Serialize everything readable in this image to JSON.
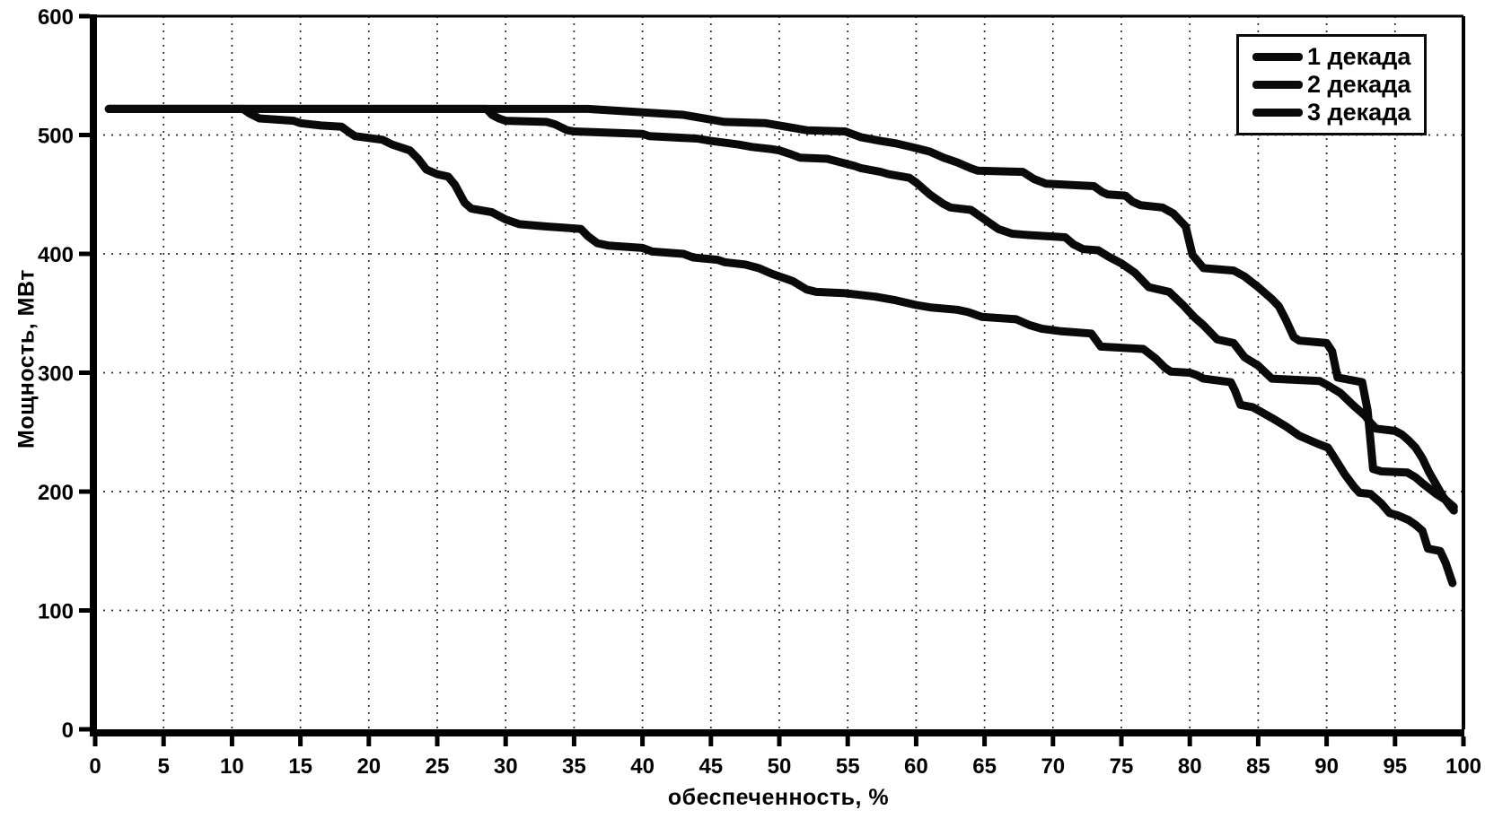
{
  "chart_data": {
    "type": "line",
    "title": "",
    "xlabel": "обеспеченность, %",
    "ylabel": "Мощность, МВт",
    "xlim": [
      0,
      100
    ],
    "ylim": [
      0,
      600
    ],
    "xticks": [
      0,
      5,
      10,
      15,
      20,
      25,
      30,
      35,
      40,
      45,
      50,
      55,
      60,
      65,
      70,
      75,
      80,
      85,
      90,
      95,
      100
    ],
    "yticks": [
      0,
      100,
      200,
      300,
      400,
      500,
      600
    ],
    "grid": true,
    "grid_style": "dotted",
    "legend_position": "top-right",
    "line_color": "#0a0a0a",
    "background_color": "#ffffff",
    "series": [
      {
        "name": "1 декада",
        "color": "#0a0a0a",
        "points": [
          [
            1,
            522
          ],
          [
            10,
            522
          ],
          [
            20,
            522
          ],
          [
            30,
            522
          ],
          [
            36,
            522
          ],
          [
            40,
            519
          ],
          [
            43,
            517
          ],
          [
            45,
            513
          ],
          [
            46,
            511
          ],
          [
            49,
            510
          ],
          [
            50,
            508
          ],
          [
            52,
            504
          ],
          [
            54.8,
            503
          ],
          [
            56,
            498
          ],
          [
            57.4,
            495
          ],
          [
            58.5,
            493
          ],
          [
            60,
            489
          ],
          [
            61,
            486
          ],
          [
            62,
            481
          ],
          [
            63,
            477
          ],
          [
            64,
            472
          ],
          [
            64.5,
            470
          ],
          [
            67.8,
            469
          ],
          [
            68.6,
            463
          ],
          [
            69.5,
            459
          ],
          [
            73,
            457
          ],
          [
            73.6,
            452
          ],
          [
            74,
            450
          ],
          [
            75.3,
            449
          ],
          [
            75.8,
            444
          ],
          [
            76.4,
            441
          ],
          [
            78,
            439
          ],
          [
            78.8,
            434
          ],
          [
            79.7,
            423
          ],
          [
            80.2,
            399
          ],
          [
            81,
            388
          ],
          [
            83.2,
            386
          ],
          [
            84,
            381
          ],
          [
            85,
            372
          ],
          [
            86,
            362
          ],
          [
            86.5,
            356
          ],
          [
            87,
            345
          ],
          [
            87.6,
            330
          ],
          [
            88,
            327
          ],
          [
            90,
            325
          ],
          [
            90.4,
            318
          ],
          [
            90.8,
            296
          ],
          [
            92.6,
            292
          ],
          [
            93,
            268
          ],
          [
            93.4,
            219
          ],
          [
            94,
            217
          ],
          [
            95.9,
            216
          ],
          [
            96.5,
            212
          ],
          [
            97,
            207
          ],
          [
            98,
            198
          ],
          [
            98.7,
            193
          ],
          [
            99.3,
            187
          ]
        ]
      },
      {
        "name": "2 декада",
        "color": "#0a0a0a",
        "points": [
          [
            1,
            522
          ],
          [
            10,
            522
          ],
          [
            20,
            522
          ],
          [
            28.6,
            522
          ],
          [
            29,
            517
          ],
          [
            29.5,
            514
          ],
          [
            30,
            512
          ],
          [
            33,
            511
          ],
          [
            33.6,
            509
          ],
          [
            34.5,
            504
          ],
          [
            35,
            503
          ],
          [
            40,
            501
          ],
          [
            40.5,
            499
          ],
          [
            44,
            497
          ],
          [
            45,
            495
          ],
          [
            47,
            492
          ],
          [
            48,
            490
          ],
          [
            49.5,
            488
          ],
          [
            50,
            487
          ],
          [
            50.8,
            484
          ],
          [
            51.5,
            481
          ],
          [
            53.5,
            480
          ],
          [
            54.5,
            477
          ],
          [
            55.5,
            474
          ],
          [
            56,
            472
          ],
          [
            57.4,
            469
          ],
          [
            58,
            467
          ],
          [
            59.5,
            464
          ],
          [
            60,
            460
          ],
          [
            61,
            450
          ],
          [
            62,
            442
          ],
          [
            62.5,
            439
          ],
          [
            64,
            437
          ],
          [
            65,
            429
          ],
          [
            66,
            421
          ],
          [
            67,
            417
          ],
          [
            68,
            416
          ],
          [
            70.9,
            414
          ],
          [
            71.5,
            408
          ],
          [
            72.2,
            404
          ],
          [
            73.3,
            403
          ],
          [
            74,
            398
          ],
          [
            75,
            392
          ],
          [
            76,
            384
          ],
          [
            77,
            372
          ],
          [
            78.5,
            368
          ],
          [
            79.5,
            357
          ],
          [
            80.3,
            347
          ],
          [
            81,
            340
          ],
          [
            82,
            328
          ],
          [
            83.2,
            325
          ],
          [
            84,
            313
          ],
          [
            85,
            306
          ],
          [
            86,
            295
          ],
          [
            89.5,
            293
          ],
          [
            90,
            290
          ],
          [
            91,
            283
          ],
          [
            92,
            272
          ],
          [
            92.8,
            264
          ],
          [
            93.2,
            258
          ],
          [
            93.6,
            253
          ],
          [
            95,
            251
          ],
          [
            95.5,
            248
          ],
          [
            96,
            243
          ],
          [
            96.5,
            237
          ],
          [
            97,
            228
          ],
          [
            97.5,
            216
          ],
          [
            98,
            206
          ],
          [
            98.5,
            196
          ],
          [
            99,
            188
          ],
          [
            99.3,
            184
          ]
        ]
      },
      {
        "name": "3 декада",
        "color": "#0a0a0a",
        "points": [
          [
            1,
            522
          ],
          [
            10.8,
            522
          ],
          [
            11.3,
            518
          ],
          [
            12,
            514
          ],
          [
            14.5,
            512
          ],
          [
            15,
            510
          ],
          [
            16.5,
            508
          ],
          [
            18,
            507
          ],
          [
            18.6,
            502
          ],
          [
            19,
            499
          ],
          [
            21,
            496
          ],
          [
            21.7,
            492
          ],
          [
            23,
            487
          ],
          [
            23.6,
            480
          ],
          [
            24.2,
            471
          ],
          [
            25,
            467
          ],
          [
            25.8,
            465
          ],
          [
            26.3,
            458
          ],
          [
            27,
            443
          ],
          [
            27.5,
            438
          ],
          [
            29,
            435
          ],
          [
            30,
            429
          ],
          [
            31,
            425
          ],
          [
            33,
            423
          ],
          [
            35.5,
            421
          ],
          [
            36,
            415
          ],
          [
            36.7,
            409
          ],
          [
            37.5,
            407
          ],
          [
            40,
            405
          ],
          [
            40.7,
            402
          ],
          [
            43,
            400
          ],
          [
            43.7,
            397
          ],
          [
            45.5,
            395
          ],
          [
            46,
            393
          ],
          [
            47.5,
            391
          ],
          [
            48.5,
            388
          ],
          [
            49.5,
            383
          ],
          [
            50.5,
            379
          ],
          [
            51,
            377
          ],
          [
            52,
            370
          ],
          [
            52.7,
            368
          ],
          [
            54.7,
            367
          ],
          [
            57,
            364
          ],
          [
            58.5,
            361
          ],
          [
            60,
            357
          ],
          [
            61,
            355
          ],
          [
            63,
            353
          ],
          [
            63.8,
            351
          ],
          [
            64.8,
            347
          ],
          [
            67.3,
            345
          ],
          [
            68.3,
            340
          ],
          [
            69.2,
            337
          ],
          [
            70.5,
            335
          ],
          [
            72.8,
            333
          ],
          [
            73.5,
            322
          ],
          [
            76.6,
            320
          ],
          [
            77.5,
            312
          ],
          [
            78.2,
            304
          ],
          [
            78.6,
            301
          ],
          [
            80,
            300
          ],
          [
            80.5,
            298
          ],
          [
            81,
            295
          ],
          [
            83,
            292
          ],
          [
            83.3,
            285
          ],
          [
            83.7,
            273
          ],
          [
            84.6,
            271
          ],
          [
            86,
            262
          ],
          [
            87,
            255
          ],
          [
            88,
            247
          ],
          [
            89.4,
            240
          ],
          [
            90.1,
            237
          ],
          [
            90.6,
            228
          ],
          [
            91.3,
            215
          ],
          [
            92,
            204
          ],
          [
            92.4,
            199
          ],
          [
            93.2,
            198
          ],
          [
            94,
            190
          ],
          [
            94.6,
            182
          ],
          [
            95.2,
            180
          ],
          [
            96,
            176
          ],
          [
            96.5,
            172
          ],
          [
            97,
            167
          ],
          [
            97.4,
            152
          ],
          [
            98.3,
            150
          ],
          [
            98.7,
            140
          ],
          [
            99.2,
            123
          ]
        ]
      }
    ]
  }
}
